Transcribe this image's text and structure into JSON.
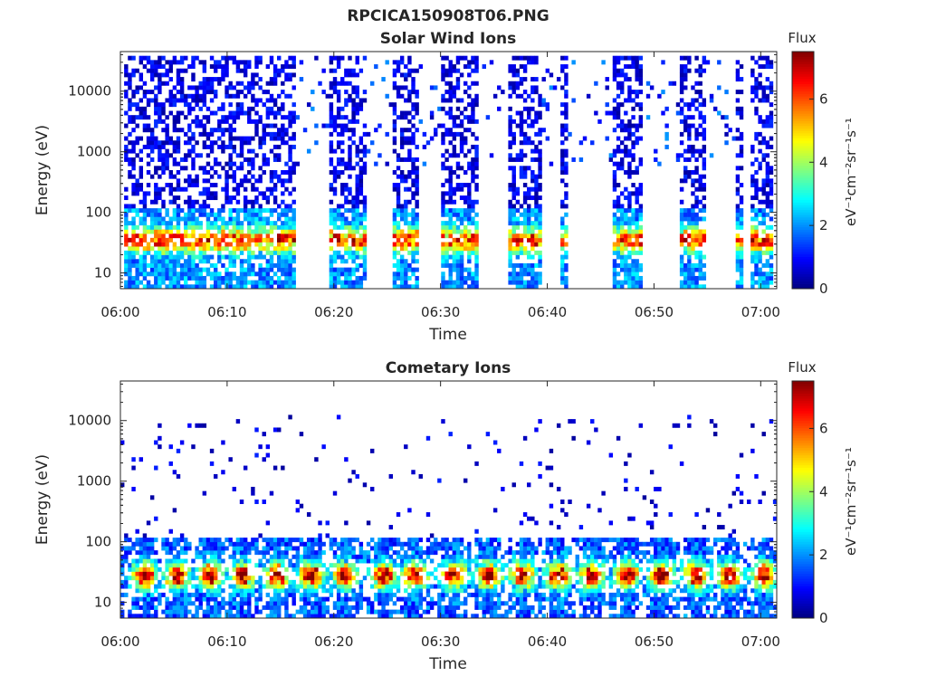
{
  "figure": {
    "main_title": "RPCICA150908T06.PNG",
    "colorbar_title": "Flux",
    "colorbar_label": "eV⁻¹cm⁻²sr⁻¹s⁻¹"
  },
  "chart_data": [
    {
      "type": "heatmap",
      "title": "Solar Wind Ions",
      "xlabel": "Time",
      "ylabel": "Energy (eV)",
      "x_ticks": [
        "06:00",
        "06:10",
        "06:20",
        "06:30",
        "06:40",
        "06:50",
        "07:00"
      ],
      "x_range_minutes": [
        0,
        61.5
      ],
      "y_scale": "log",
      "y_ticks": [
        10,
        100,
        1000,
        10000
      ],
      "y_tick_labels": [
        "10",
        "100",
        "1000",
        "10000"
      ],
      "y_range": [
        5.5,
        45000
      ],
      "colorbar_range": [
        0,
        7.5
      ],
      "colorbar_ticks": [
        0,
        2,
        4,
        6
      ],
      "colormap": "jet",
      "scan_bands_minutes": [
        [
          0.3,
          16.4
        ],
        [
          19.6,
          22.9
        ],
        [
          25.6,
          27.8
        ],
        [
          30.0,
          33.6
        ],
        [
          36.2,
          39.6
        ],
        [
          41.1,
          42.0
        ],
        [
          46.0,
          49.0
        ],
        [
          52.4,
          54.9
        ],
        [
          57.6,
          58.2
        ],
        [
          59.2,
          61.1
        ]
      ],
      "sparse_bands_minutes": [
        [
          16.4,
          19.6
        ],
        [
          22.9,
          25.6
        ],
        [
          27.8,
          30.0
        ],
        [
          33.6,
          36.2
        ],
        [
          39.6,
          46.0
        ],
        [
          49.0,
          52.4
        ],
        [
          54.9,
          57.6
        ]
      ],
      "peak_energy_eV": [
        20,
        50
      ],
      "peak_flux": 5.5
    },
    {
      "type": "heatmap",
      "title": "Cometary Ions",
      "xlabel": "Time",
      "ylabel": "Energy (eV)",
      "x_ticks": [
        "06:00",
        "06:10",
        "06:20",
        "06:30",
        "06:40",
        "06:50",
        "07:00"
      ],
      "x_range_minutes": [
        0,
        61.5
      ],
      "y_scale": "log",
      "y_ticks": [
        10,
        100,
        1000,
        10000
      ],
      "y_tick_labels": [
        "10",
        "100",
        "1000",
        "10000"
      ],
      "y_range": [
        5.5,
        45000
      ],
      "colorbar_range": [
        0,
        7.5
      ],
      "colorbar_ticks": [
        0,
        2,
        4,
        6
      ],
      "colormap": "jet",
      "blob_centers_minutes": [
        2.3,
        5.3,
        8.5,
        11.5,
        14.7,
        17.9,
        21.0,
        24.7,
        27.6,
        31.3,
        34.5,
        37.7,
        41.0,
        44.2,
        47.5,
        50.7,
        54.0,
        57.1,
        60.3
      ],
      "peak_energy_eV": [
        15,
        45
      ],
      "peak_flux": 7.3
    }
  ]
}
